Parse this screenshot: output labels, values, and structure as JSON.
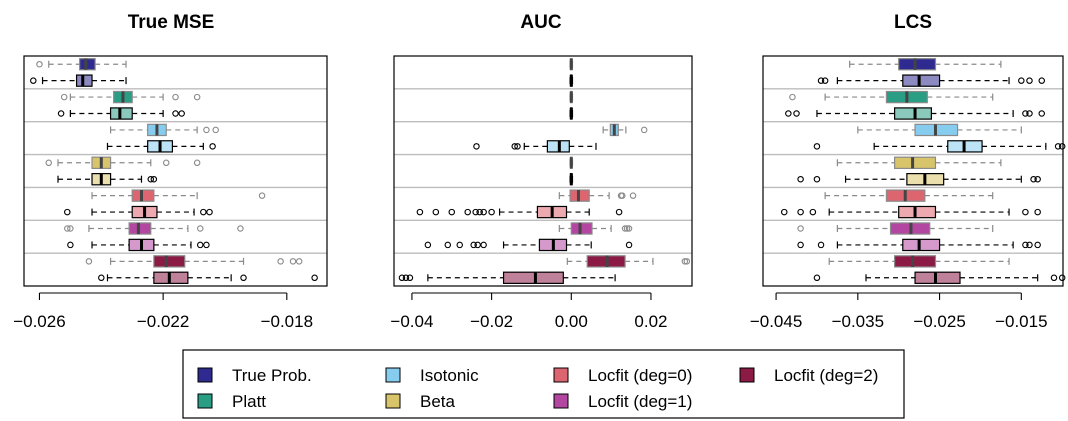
{
  "legend": {
    "items": [
      {
        "label": "True Prob.",
        "color": "#2e2a8f"
      },
      {
        "label": "Platt",
        "color": "#2a9d85"
      },
      {
        "label": "Isotonic",
        "color": "#86ccef"
      },
      {
        "label": "Beta",
        "color": "#d8c46a"
      },
      {
        "label": "Locfit (deg=0)",
        "color": "#dd6570"
      },
      {
        "label": "Locfit (deg=1)",
        "color": "#b246a0"
      },
      {
        "label": "Locfit (deg=2)",
        "color": "#8b1a45"
      }
    ]
  },
  "chart_data": [
    {
      "type": "boxplot",
      "title": "True MSE",
      "xlim": [
        -0.0265,
        -0.0167
      ],
      "ticks": [
        -0.026,
        -0.022,
        -0.018
      ],
      "tick_labels": [
        "−0.026",
        "−0.022",
        "−0.018"
      ],
      "boxes": [
        {
          "group": "True Prob.",
          "variant": "dark",
          "whislo": -0.0257,
          "q1": -0.0247,
          "med": -0.0245,
          "q3": -0.0242,
          "whishi": -0.0232,
          "outliers": [
            -0.026
          ]
        },
        {
          "group": "True Prob.",
          "variant": "light",
          "whislo": -0.0259,
          "q1": -0.0248,
          "med": -0.0246,
          "q3": -0.0243,
          "whishi": -0.0232,
          "outliers": [
            -0.0262
          ]
        },
        {
          "group": "Platt",
          "variant": "dark",
          "whislo": -0.025,
          "q1": -0.0236,
          "med": -0.0233,
          "q3": -0.023,
          "whishi": -0.022,
          "outliers": [
            -0.0252,
            -0.0216,
            -0.0209
          ]
        },
        {
          "group": "Platt",
          "variant": "light",
          "whislo": -0.025,
          "q1": -0.0237,
          "med": -0.0234,
          "q3": -0.023,
          "whishi": -0.022,
          "outliers": [
            -0.0253,
            -0.0216,
            -0.0214
          ]
        },
        {
          "group": "Isotonic",
          "variant": "dark",
          "whislo": -0.0237,
          "q1": -0.0225,
          "med": -0.0222,
          "q3": -0.0219,
          "whishi": -0.0209,
          "outliers": [
            -0.0206,
            -0.0203
          ]
        },
        {
          "group": "Isotonic",
          "variant": "light",
          "whislo": -0.0238,
          "q1": -0.0225,
          "med": -0.0221,
          "q3": -0.0217,
          "whishi": -0.0207,
          "outliers": [
            -0.0204
          ]
        },
        {
          "group": "Beta",
          "variant": "dark",
          "whislo": -0.0254,
          "q1": -0.0243,
          "med": -0.024,
          "q3": -0.0237,
          "whishi": -0.0224,
          "outliers": [
            -0.0257,
            -0.0219,
            -0.0209
          ]
        },
        {
          "group": "Beta",
          "variant": "light",
          "whislo": -0.0254,
          "q1": -0.0243,
          "med": -0.024,
          "q3": -0.0237,
          "whishi": -0.0227,
          "outliers": [
            -0.0224,
            -0.0223
          ]
        },
        {
          "group": "Locfit (deg=0)",
          "variant": "dark",
          "whislo": -0.0243,
          "q1": -0.023,
          "med": -0.0227,
          "q3": -0.0223,
          "whishi": -0.0209,
          "outliers": [
            -0.0188
          ]
        },
        {
          "group": "Locfit (deg=0)",
          "variant": "light",
          "whislo": -0.0243,
          "q1": -0.023,
          "med": -0.0226,
          "q3": -0.0222,
          "whishi": -0.021,
          "outliers": [
            -0.0251,
            -0.0207,
            -0.0205
          ]
        },
        {
          "group": "Locfit (deg=1)",
          "variant": "dark",
          "whislo": -0.0244,
          "q1": -0.0231,
          "med": -0.0228,
          "q3": -0.0224,
          "whishi": -0.0212,
          "outliers": [
            -0.0251,
            -0.025,
            -0.0208,
            -0.0195
          ]
        },
        {
          "group": "Locfit (deg=1)",
          "variant": "light",
          "whislo": -0.0243,
          "q1": -0.0231,
          "med": -0.0227,
          "q3": -0.0223,
          "whishi": -0.0211,
          "outliers": [
            -0.025,
            -0.0208,
            -0.0206
          ]
        },
        {
          "group": "Locfit (deg=2)",
          "variant": "dark",
          "whislo": -0.0237,
          "q1": -0.0223,
          "med": -0.0219,
          "q3": -0.0213,
          "whishi": -0.0194,
          "outliers": [
            -0.0244,
            -0.0182,
            -0.0178,
            -0.0176
          ]
        },
        {
          "group": "Locfit (deg=2)",
          "variant": "light",
          "whislo": -0.0238,
          "q1": -0.0223,
          "med": -0.0218,
          "q3": -0.0212,
          "whishi": -0.0198,
          "outliers": [
            -0.024,
            -0.0194,
            -0.0171
          ]
        }
      ]
    },
    {
      "type": "boxplot",
      "title": "AUC",
      "xlim": [
        -0.0445,
        0.0303
      ],
      "ticks": [
        -0.04,
        -0.02,
        0.0,
        0.02
      ],
      "tick_labels": [
        "−0.04",
        "−0.02",
        "0.00",
        "0.02"
      ],
      "boxes": [
        {
          "group": "True Prob.",
          "variant": "dark",
          "whislo": -0.0003,
          "q1": -0.0002,
          "med": 0.0,
          "q3": 0.0002,
          "whishi": 0.0003,
          "outliers": []
        },
        {
          "group": "True Prob.",
          "variant": "light",
          "whislo": -0.0003,
          "q1": -0.0002,
          "med": 0.0,
          "q3": 0.0002,
          "whishi": 0.0003,
          "outliers": []
        },
        {
          "group": "Platt",
          "variant": "dark",
          "whislo": -0.0003,
          "q1": -0.0002,
          "med": 0.0,
          "q3": 0.0002,
          "whishi": 0.0003,
          "outliers": []
        },
        {
          "group": "Platt",
          "variant": "light",
          "whislo": -0.0003,
          "q1": -0.0002,
          "med": 0.0,
          "q3": 0.0002,
          "whishi": 0.0003,
          "outliers": []
        },
        {
          "group": "Isotonic",
          "variant": "dark",
          "whislo": 0.008,
          "q1": 0.0098,
          "med": 0.0108,
          "q3": 0.0118,
          "whishi": 0.0137,
          "outliers": [
            0.0183
          ]
        },
        {
          "group": "Isotonic",
          "variant": "light",
          "whislo": -0.0118,
          "q1": -0.006,
          "med": -0.003,
          "q3": -0.0005,
          "whishi": 0.0062,
          "outliers": [
            -0.0238,
            -0.0142,
            -0.0135
          ]
        },
        {
          "group": "Beta",
          "variant": "dark",
          "whislo": -0.0003,
          "q1": -0.0002,
          "med": 0.0,
          "q3": 0.0002,
          "whishi": 0.0003,
          "outliers": []
        },
        {
          "group": "Beta",
          "variant": "light",
          "whislo": -0.0003,
          "q1": -0.0002,
          "med": 0.0,
          "q3": 0.0002,
          "whishi": 0.0003,
          "outliers": []
        },
        {
          "group": "Locfit (deg=0)",
          "variant": "dark",
          "whislo": -0.003,
          "q1": -0.0003,
          "med": 0.0018,
          "q3": 0.0045,
          "whishi": 0.0095,
          "outliers": [
            0.0125,
            0.0128,
            0.0155
          ]
        },
        {
          "group": "Locfit (deg=0)",
          "variant": "light",
          "whislo": -0.018,
          "q1": -0.0085,
          "med": -0.0048,
          "q3": -0.0012,
          "whishi": 0.0045,
          "outliers": [
            -0.038,
            -0.034,
            -0.03,
            -0.026,
            -0.024,
            -0.023,
            -0.022,
            -0.02,
            0.012
          ]
        },
        {
          "group": "Locfit (deg=1)",
          "variant": "dark",
          "whislo": -0.003,
          "q1": 0.0,
          "med": 0.0022,
          "q3": 0.0052,
          "whishi": 0.01,
          "outliers": [
            0.0135,
            0.014,
            0.0145
          ]
        },
        {
          "group": "Locfit (deg=1)",
          "variant": "light",
          "whislo": -0.017,
          "q1": -0.008,
          "med": -0.0045,
          "q3": -0.0012,
          "whishi": 0.005,
          "outliers": [
            -0.036,
            -0.031,
            -0.028,
            -0.0245,
            -0.0235,
            -0.022,
            0.0145
          ]
        },
        {
          "group": "Locfit (deg=2)",
          "variant": "dark",
          "whislo": -0.001,
          "q1": 0.004,
          "med": 0.009,
          "q3": 0.0135,
          "whishi": 0.0205,
          "outliers": [
            0.0285,
            0.029
          ]
        },
        {
          "group": "Locfit (deg=2)",
          "variant": "light",
          "whislo": -0.036,
          "q1": -0.017,
          "med": -0.009,
          "q3": -0.002,
          "whishi": 0.011,
          "outliers": [
            -0.0425,
            -0.0415,
            -0.0405
          ]
        }
      ]
    },
    {
      "type": "boxplot",
      "title": "LCS",
      "xlim": [
        -0.0466,
        -0.0099
      ],
      "ticks": [
        -0.045,
        -0.035,
        -0.025,
        -0.015
      ],
      "tick_labels": [
        "−0.045",
        "−0.035",
        "−0.025",
        "−0.015"
      ],
      "boxes": [
        {
          "group": "True Prob.",
          "variant": "dark",
          "whislo": -0.036,
          "q1": -0.03,
          "med": -0.028,
          "q3": -0.0255,
          "whishi": -0.0175,
          "outliers": []
        },
        {
          "group": "True Prob.",
          "variant": "light",
          "whislo": -0.0375,
          "q1": -0.0295,
          "med": -0.0275,
          "q3": -0.025,
          "whishi": -0.0165,
          "outliers": [
            -0.0395,
            -0.039,
            -0.015,
            -0.014,
            -0.0125
          ]
        },
        {
          "group": "Platt",
          "variant": "dark",
          "whislo": -0.039,
          "q1": -0.0315,
          "med": -0.029,
          "q3": -0.0265,
          "whishi": -0.0185,
          "outliers": [
            -0.043
          ]
        },
        {
          "group": "Platt",
          "variant": "light",
          "whislo": -0.04,
          "q1": -0.0305,
          "med": -0.028,
          "q3": -0.026,
          "whishi": -0.016,
          "outliers": [
            -0.0435,
            -0.0425,
            -0.0145,
            -0.014,
            -0.0125
          ]
        },
        {
          "group": "Isotonic",
          "variant": "dark",
          "whislo": -0.035,
          "q1": -0.028,
          "med": -0.0255,
          "q3": -0.0228,
          "whishi": -0.015,
          "outliers": []
        },
        {
          "group": "Isotonic",
          "variant": "light",
          "whislo": -0.033,
          "q1": -0.024,
          "med": -0.022,
          "q3": -0.0198,
          "whishi": -0.012,
          "outliers": [
            -0.04,
            -0.0105,
            -0.01
          ]
        },
        {
          "group": "Beta",
          "variant": "dark",
          "whislo": -0.0375,
          "q1": -0.0305,
          "med": -0.0283,
          "q3": -0.0255,
          "whishi": -0.0175,
          "outliers": []
        },
        {
          "group": "Beta",
          "variant": "light",
          "whislo": -0.0365,
          "q1": -0.029,
          "med": -0.0268,
          "q3": -0.0245,
          "whishi": -0.015,
          "outliers": [
            -0.042,
            -0.04,
            -0.0135,
            -0.013
          ]
        },
        {
          "group": "Locfit (deg=0)",
          "variant": "dark",
          "whislo": -0.039,
          "q1": -0.0315,
          "med": -0.0292,
          "q3": -0.0268,
          "whishi": -0.0185,
          "outliers": []
        },
        {
          "group": "Locfit (deg=0)",
          "variant": "light",
          "whislo": -0.0385,
          "q1": -0.03,
          "med": -0.028,
          "q3": -0.0255,
          "whishi": -0.0165,
          "outliers": [
            -0.044,
            -0.042,
            -0.0405,
            -0.0145,
            -0.013
          ]
        },
        {
          "group": "Locfit (deg=1)",
          "variant": "dark",
          "whislo": -0.0375,
          "q1": -0.031,
          "med": -0.0285,
          "q3": -0.0262,
          "whishi": -0.0185,
          "outliers": [
            -0.042
          ]
        },
        {
          "group": "Locfit (deg=1)",
          "variant": "light",
          "whislo": -0.0375,
          "q1": -0.0295,
          "med": -0.0275,
          "q3": -0.025,
          "whishi": -0.016,
          "outliers": [
            -0.042,
            -0.0395,
            -0.0145,
            -0.014,
            -0.013
          ]
        },
        {
          "group": "Locfit (deg=2)",
          "variant": "dark",
          "whislo": -0.0385,
          "q1": -0.0305,
          "med": -0.0283,
          "q3": -0.0255,
          "whishi": -0.0165,
          "outliers": []
        },
        {
          "group": "Locfit (deg=2)",
          "variant": "light",
          "whislo": -0.034,
          "q1": -0.028,
          "med": -0.0255,
          "q3": -0.0225,
          "whishi": -0.013,
          "outliers": [
            -0.04,
            -0.011,
            -0.01
          ]
        }
      ]
    }
  ]
}
